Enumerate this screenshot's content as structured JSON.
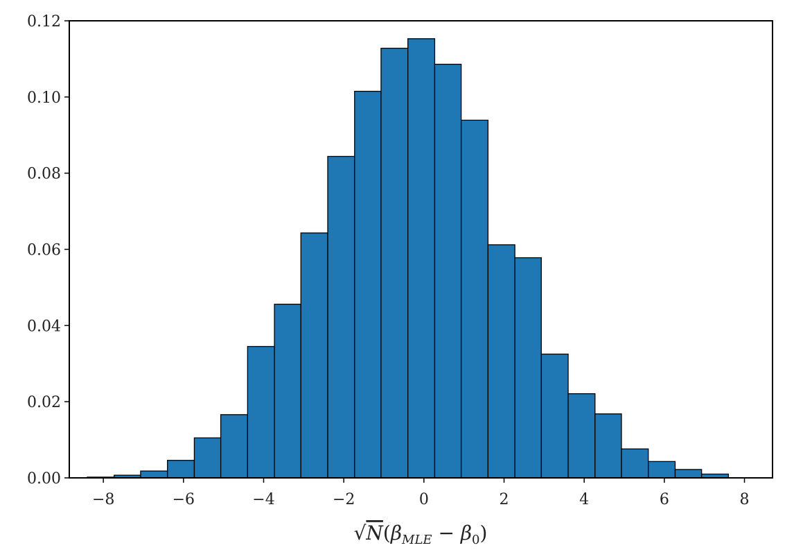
{
  "chart_data": {
    "type": "bar",
    "bins": [
      {
        "x0": -8.4,
        "x1": -7.73,
        "value": 0.0002
      },
      {
        "x0": -7.73,
        "x1": -7.07,
        "value": 0.0007
      },
      {
        "x0": -7.07,
        "x1": -6.4,
        "value": 0.0018
      },
      {
        "x0": -6.4,
        "x1": -5.73,
        "value": 0.0046
      },
      {
        "x0": -5.73,
        "x1": -5.07,
        "value": 0.0105
      },
      {
        "x0": -5.07,
        "x1": -4.4,
        "value": 0.0166
      },
      {
        "x0": -4.4,
        "x1": -3.73,
        "value": 0.0345
      },
      {
        "x0": -3.73,
        "x1": -3.07,
        "value": 0.0456
      },
      {
        "x0": -3.07,
        "x1": -2.4,
        "value": 0.0643
      },
      {
        "x0": -2.4,
        "x1": -1.73,
        "value": 0.0844
      },
      {
        "x0": -1.73,
        "x1": -1.07,
        "value": 0.1015
      },
      {
        "x0": -1.07,
        "x1": -0.4,
        "value": 0.1128
      },
      {
        "x0": -0.4,
        "x1": 0.27,
        "value": 0.1153
      },
      {
        "x0": 0.27,
        "x1": 0.93,
        "value": 0.1086
      },
      {
        "x0": 0.93,
        "x1": 1.6,
        "value": 0.0939
      },
      {
        "x0": 1.6,
        "x1": 2.27,
        "value": 0.0612
      },
      {
        "x0": 2.27,
        "x1": 2.93,
        "value": 0.0578
      },
      {
        "x0": 2.93,
        "x1": 3.6,
        "value": 0.0325
      },
      {
        "x0": 3.6,
        "x1": 4.27,
        "value": 0.0221
      },
      {
        "x0": 4.27,
        "x1": 4.93,
        "value": 0.0168
      },
      {
        "x0": 4.93,
        "x1": 5.6,
        "value": 0.0076
      },
      {
        "x0": 5.6,
        "x1": 6.27,
        "value": 0.0043
      },
      {
        "x0": 6.27,
        "x1": 6.93,
        "value": 0.0022
      },
      {
        "x0": 6.93,
        "x1": 7.6,
        "value": 0.001
      }
    ],
    "xlim": [
      -8.85,
      8.7
    ],
    "ylim": [
      0,
      0.12
    ],
    "xticks": [
      -8,
      -6,
      -4,
      -2,
      0,
      2,
      4,
      6,
      8
    ],
    "xtick_labels": [
      "−8",
      "−6",
      "−4",
      "−2",
      "0",
      "2",
      "4",
      "6",
      "8"
    ],
    "yticks": [
      0,
      0.02,
      0.04,
      0.06,
      0.08,
      0.1,
      0.12
    ],
    "ytick_labels": [
      "0.00",
      "0.02",
      "0.04",
      "0.06",
      "0.08",
      "0.10",
      "0.12"
    ],
    "xlabel": "√N(βMLE − β0)",
    "ylabel": "",
    "title": "",
    "grid": false,
    "bar_color": "#1f77b4",
    "edge_color": "#000000"
  }
}
